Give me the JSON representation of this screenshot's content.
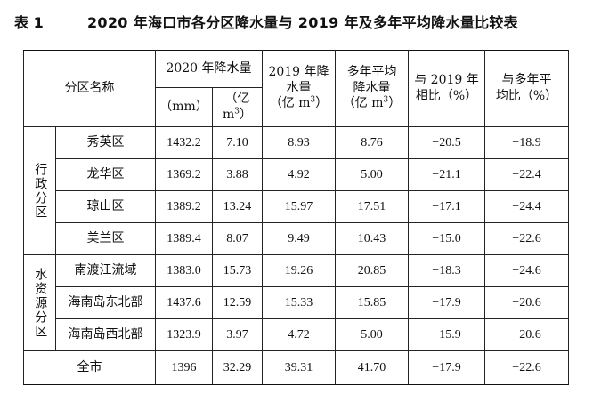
{
  "caption": {
    "number": "表 1",
    "title": "2020 年海口市各分区降水量与 2019 年及多年平均降水量比较表"
  },
  "header": {
    "district": "分区名称",
    "rain2020": "2020 年降水量",
    "unit_mm": "（mm）",
    "unit_m3_prefix": "（亿 m",
    "unit_m3_sup": "3",
    "unit_m3_suffix": "）",
    "rain2019_line1": "2019 年降",
    "rain2019_line2": "水量",
    "multi_line1": "多年平均",
    "multi_line2": "降水量",
    "vs2019_line1": "与 2019 年",
    "vs2019_line2": "相比（%）",
    "vsavg_line1": "与多年平",
    "vsavg_line2": "均比（%）"
  },
  "groups": {
    "admin": "行政分区",
    "water": "水资源分区"
  },
  "rows": [
    {
      "name": "秀英区",
      "mm": "1432.2",
      "v2020": "7.10",
      "v2019": "8.93",
      "avg": "8.76",
      "vs2019": "−20.5",
      "vsavg": "−18.9"
    },
    {
      "name": "龙华区",
      "mm": "1369.2",
      "v2020": "3.88",
      "v2019": "4.92",
      "avg": "5.00",
      "vs2019": "−21.1",
      "vsavg": "−22.4"
    },
    {
      "name": "琼山区",
      "mm": "1389.2",
      "v2020": "13.24",
      "v2019": "15.97",
      "avg": "17.51",
      "vs2019": "−17.1",
      "vsavg": "−24.4"
    },
    {
      "name": "美兰区",
      "mm": "1389.4",
      "v2020": "8.07",
      "v2019": "9.49",
      "avg": "10.43",
      "vs2019": "−15.0",
      "vsavg": "−22.6"
    },
    {
      "name": "南渡江流域",
      "mm": "1383.0",
      "v2020": "15.73",
      "v2019": "19.26",
      "avg": "20.85",
      "vs2019": "−18.3",
      "vsavg": "−24.6"
    },
    {
      "name": "海南岛东北部",
      "mm": "1437.6",
      "v2020": "12.59",
      "v2019": "15.33",
      "avg": "15.85",
      "vs2019": "−17.9",
      "vsavg": "−20.6"
    },
    {
      "name": "海南岛西北部",
      "mm": "1323.9",
      "v2020": "3.97",
      "v2019": "4.72",
      "avg": "5.00",
      "vs2019": "−15.9",
      "vsavg": "−20.6"
    }
  ],
  "total": {
    "name": "全市",
    "mm": "1396",
    "v2020": "32.29",
    "v2019": "39.31",
    "avg": "41.70",
    "vs2019": "−17.9",
    "vsavg": "−22.6"
  }
}
